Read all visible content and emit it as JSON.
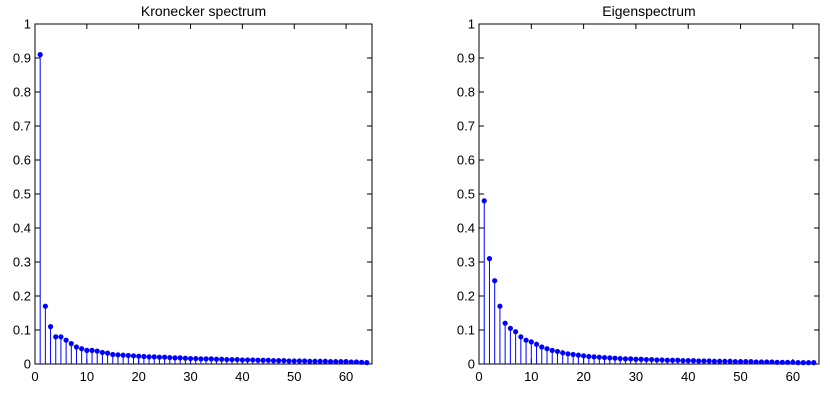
{
  "chart_data": [
    {
      "type": "stem",
      "title": "Kronecker spectrum",
      "xlabel": "",
      "ylabel": "",
      "xlim": [
        0,
        65
      ],
      "ylim": [
        0,
        1
      ],
      "xticks": [
        "0",
        "10",
        "20",
        "30",
        "40",
        "50",
        "60"
      ],
      "yticks": [
        "0",
        "0.1",
        "0.2",
        "0.3",
        "0.4",
        "0.5",
        "0.6",
        "0.7",
        "0.8",
        "0.9",
        "1"
      ],
      "grid": false,
      "color": "#0000ff",
      "x": [
        1,
        2,
        3,
        4,
        5,
        6,
        7,
        8,
        9,
        10,
        11,
        12,
        13,
        14,
        15,
        16,
        17,
        18,
        19,
        20,
        21,
        22,
        23,
        24,
        25,
        26,
        27,
        28,
        29,
        30,
        31,
        32,
        33,
        34,
        35,
        36,
        37,
        38,
        39,
        40,
        41,
        42,
        43,
        44,
        45,
        46,
        47,
        48,
        49,
        50,
        51,
        52,
        53,
        54,
        55,
        56,
        57,
        58,
        59,
        60,
        61,
        62,
        63,
        64
      ],
      "values": [
        0.91,
        0.17,
        0.11,
        0.08,
        0.08,
        0.07,
        0.06,
        0.05,
        0.045,
        0.04,
        0.04,
        0.038,
        0.034,
        0.032,
        0.028,
        0.027,
        0.026,
        0.025,
        0.024,
        0.023,
        0.022,
        0.021,
        0.021,
        0.02,
        0.02,
        0.019,
        0.018,
        0.018,
        0.017,
        0.016,
        0.016,
        0.015,
        0.015,
        0.015,
        0.014,
        0.014,
        0.013,
        0.013,
        0.013,
        0.012,
        0.012,
        0.012,
        0.011,
        0.011,
        0.011,
        0.01,
        0.01,
        0.01,
        0.009,
        0.009,
        0.009,
        0.009,
        0.008,
        0.008,
        0.008,
        0.008,
        0.007,
        0.007,
        0.007,
        0.007,
        0.006,
        0.006,
        0.005,
        0.004
      ]
    },
    {
      "type": "stem",
      "title": "Eigenspectrum",
      "xlabel": "",
      "ylabel": "",
      "xlim": [
        0,
        65
      ],
      "ylim": [
        0,
        1
      ],
      "xticks": [
        "0",
        "10",
        "20",
        "30",
        "40",
        "50",
        "60"
      ],
      "yticks": [
        "0",
        "0.1",
        "0.2",
        "0.3",
        "0.4",
        "0.5",
        "0.6",
        "0.7",
        "0.8",
        "0.9",
        "1"
      ],
      "grid": false,
      "color": "#0000ff",
      "x": [
        1,
        2,
        3,
        4,
        5,
        6,
        7,
        8,
        9,
        10,
        11,
        12,
        13,
        14,
        15,
        16,
        17,
        18,
        19,
        20,
        21,
        22,
        23,
        24,
        25,
        26,
        27,
        28,
        29,
        30,
        31,
        32,
        33,
        34,
        35,
        36,
        37,
        38,
        39,
        40,
        41,
        42,
        43,
        44,
        45,
        46,
        47,
        48,
        49,
        50,
        51,
        52,
        53,
        54,
        55,
        56,
        57,
        58,
        59,
        60,
        61,
        62,
        63,
        64
      ],
      "values": [
        0.48,
        0.31,
        0.245,
        0.17,
        0.12,
        0.105,
        0.095,
        0.08,
        0.07,
        0.065,
        0.058,
        0.05,
        0.045,
        0.04,
        0.037,
        0.033,
        0.03,
        0.028,
        0.026,
        0.024,
        0.022,
        0.021,
        0.02,
        0.019,
        0.018,
        0.017,
        0.016,
        0.015,
        0.015,
        0.014,
        0.014,
        0.013,
        0.013,
        0.012,
        0.012,
        0.011,
        0.011,
        0.011,
        0.01,
        0.01,
        0.01,
        0.009,
        0.009,
        0.009,
        0.008,
        0.008,
        0.008,
        0.008,
        0.007,
        0.007,
        0.007,
        0.007,
        0.006,
        0.006,
        0.006,
        0.006,
        0.005,
        0.005,
        0.005,
        0.005,
        0.004,
        0.004,
        0.004,
        0.004
      ]
    }
  ]
}
